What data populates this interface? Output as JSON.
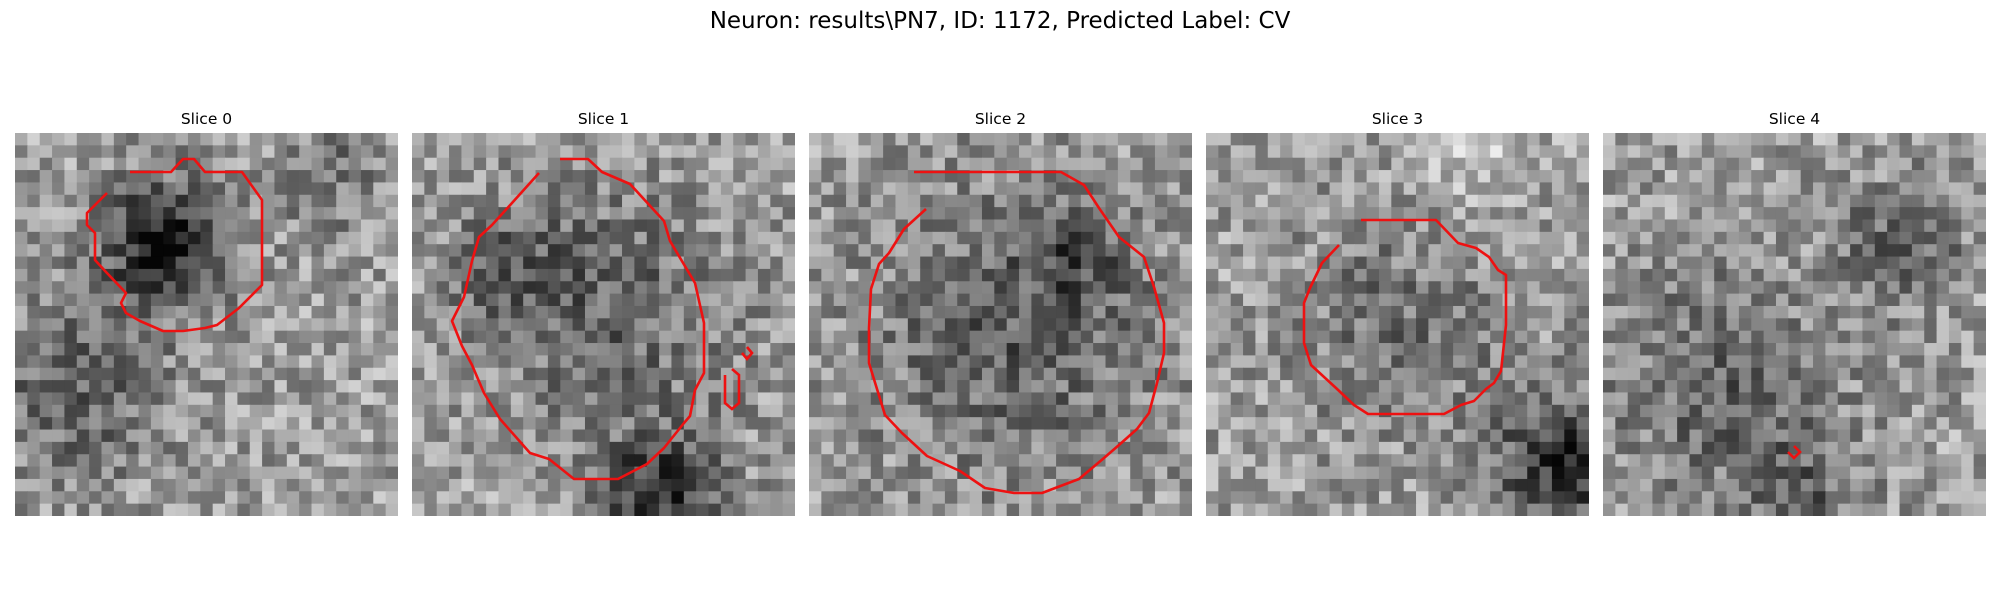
{
  "figure": {
    "title": "Neuron: results\\PN7, ID: 1172, Predicted Label: CV"
  },
  "slices": [
    {
      "title": "Slice 0"
    },
    {
      "title": "Slice 1"
    },
    {
      "title": "Slice 2"
    },
    {
      "title": "Slice 3"
    },
    {
      "title": "Slice 4"
    }
  ],
  "contour_color": "#ee1111"
}
